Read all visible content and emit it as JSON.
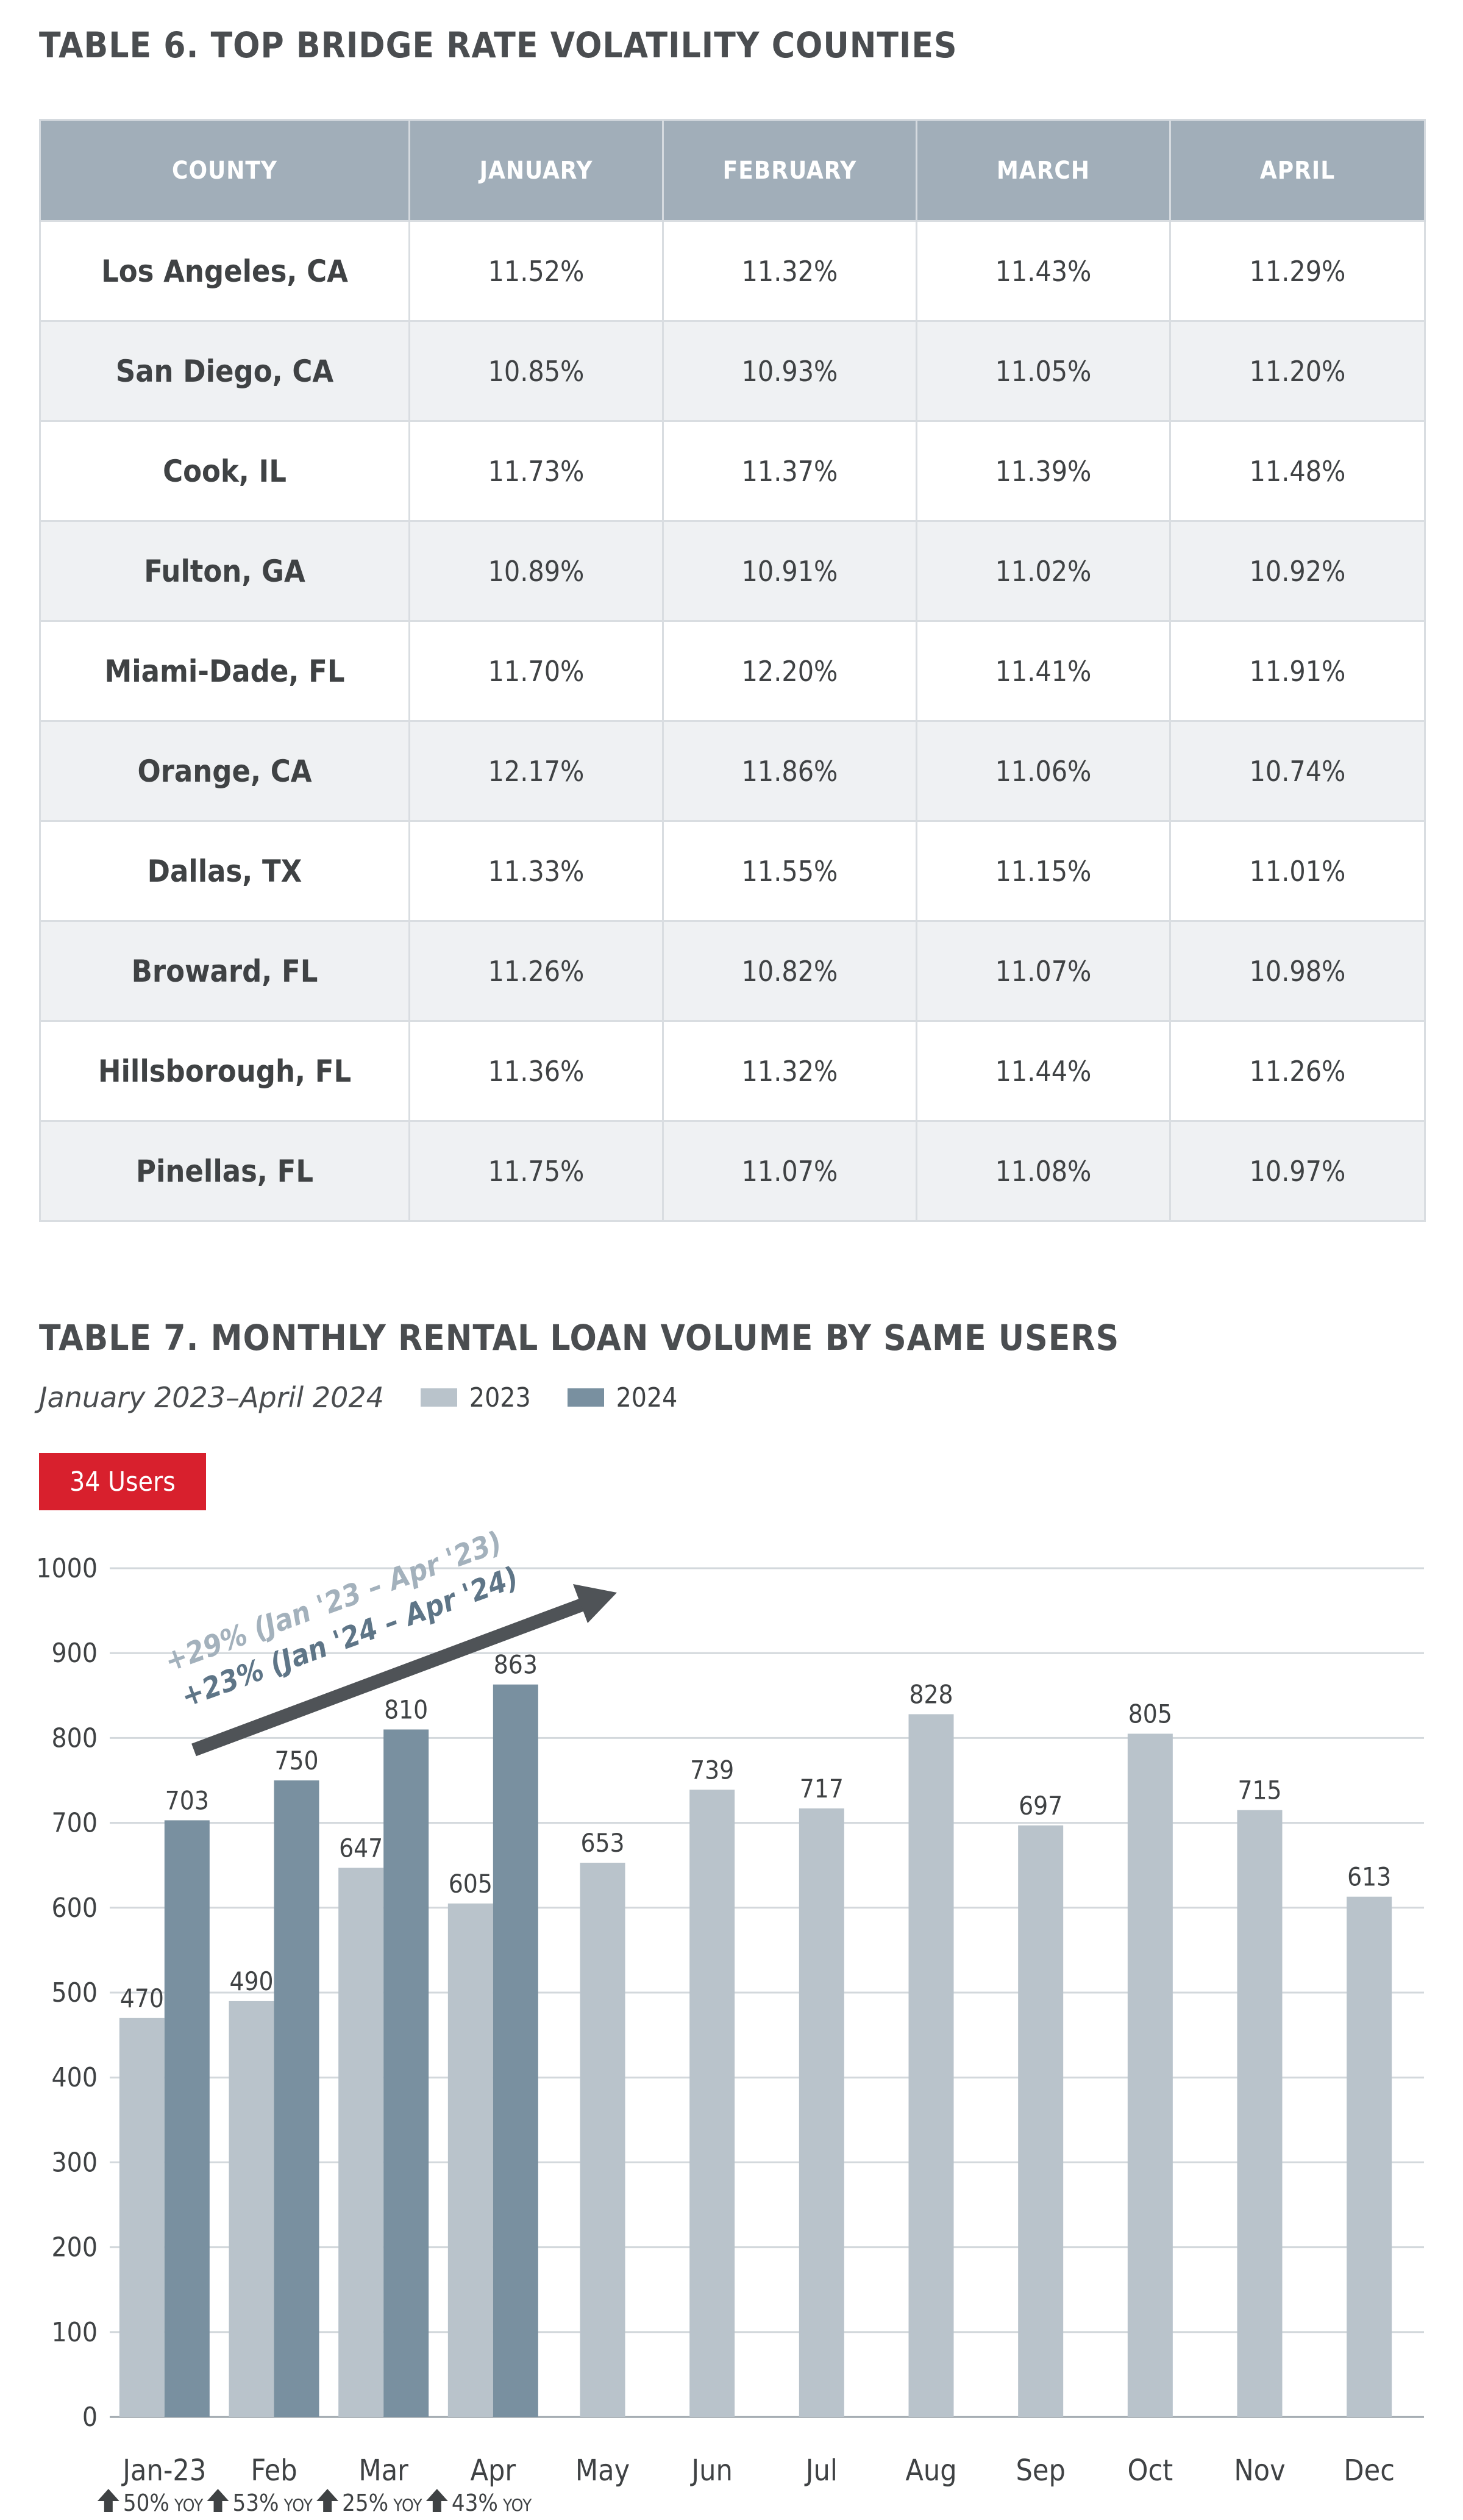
{
  "table6": {
    "title": "TABLE 6. TOP BRIDGE RATE VOLATILITY COUNTIES",
    "headers": [
      "COUNTY",
      "JANUARY",
      "FEBRUARY",
      "MARCH",
      "APRIL"
    ],
    "rows": [
      [
        "Los Angeles, CA",
        "11.52%",
        "11.32%",
        "11.43%",
        "11.29%"
      ],
      [
        "San Diego, CA",
        "10.85%",
        "10.93%",
        "11.05%",
        "11.20%"
      ],
      [
        "Cook, IL",
        "11.73%",
        "11.37%",
        "11.39%",
        "11.48%"
      ],
      [
        "Fulton, GA",
        "10.89%",
        "10.91%",
        "11.02%",
        "10.92%"
      ],
      [
        "Miami-Dade, FL",
        "11.70%",
        "12.20%",
        "11.41%",
        "11.91%"
      ],
      [
        "Orange, CA",
        "12.17%",
        "11.86%",
        "11.06%",
        "10.74%"
      ],
      [
        "Dallas, TX",
        "11.33%",
        "11.55%",
        "11.15%",
        "11.01%"
      ],
      [
        "Broward, FL",
        "11.26%",
        "10.82%",
        "11.07%",
        "10.98%"
      ],
      [
        "Hillsborough, FL",
        "11.36%",
        "11.32%",
        "11.44%",
        "11.26%"
      ],
      [
        "Pinellas, FL",
        "11.75%",
        "11.07%",
        "11.08%",
        "10.97%"
      ]
    ]
  },
  "table7": {
    "title": "TABLE 7. MONTHLY RENTAL LOAN VOLUME BY SAME USERS",
    "subtitle": "January 2023–April 2024",
    "badge": "34 Users",
    "legend": [
      {
        "label": "2023",
        "color": "#b9c3cb"
      },
      {
        "label": "2024",
        "color": "#7990a0"
      }
    ]
  },
  "chart_data": {
    "type": "bar",
    "categories": [
      "Jan-23",
      "Feb",
      "Mar",
      "Apr",
      "May",
      "Jun",
      "Jul",
      "Aug",
      "Sep",
      "Oct",
      "Nov",
      "Dec"
    ],
    "series": [
      {
        "name": "2023",
        "color": "#b9c3cb",
        "values": [
          470,
          490,
          647,
          605,
          653,
          739,
          717,
          828,
          697,
          805,
          715,
          613
        ]
      },
      {
        "name": "2024",
        "color": "#7990a0",
        "values": [
          703,
          750,
          810,
          863,
          null,
          null,
          null,
          null,
          null,
          null,
          null,
          null
        ]
      }
    ],
    "yticks": [
      0,
      100,
      200,
      300,
      400,
      500,
      600,
      700,
      800,
      900,
      1000
    ],
    "ylim": [
      0,
      1000
    ],
    "grid": true,
    "yoy": [
      "50%",
      "53%",
      "25%",
      "43%"
    ],
    "yoy_suffix": "YOY",
    "annotations": [
      "+29% (Jan '23 – Apr '23)",
      "+23% (Jan '24 – Apr '24)"
    ],
    "annotation_colors": [
      "#a3b1bc",
      "#5e7587"
    ]
  }
}
